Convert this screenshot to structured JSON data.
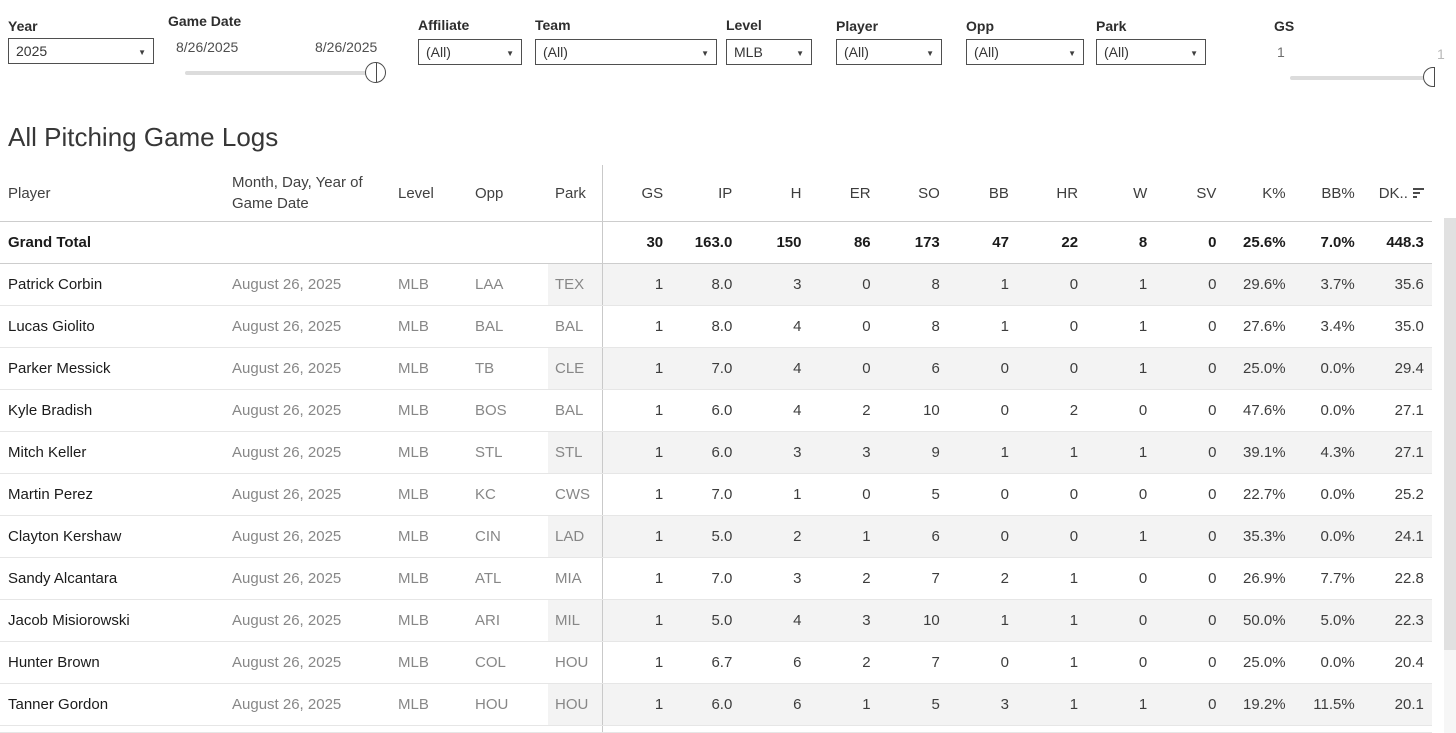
{
  "filters": {
    "year": {
      "label": "Year",
      "value": "2025"
    },
    "game_date": {
      "label": "Game Date",
      "start": "8/26/2025",
      "end": "8/26/2025"
    },
    "affiliate": {
      "label": "Affiliate",
      "value": "(All)"
    },
    "team": {
      "label": "Team",
      "value": "(All)"
    },
    "level": {
      "label": "Level",
      "value": "MLB"
    },
    "player": {
      "label": "Player",
      "value": "(All)"
    },
    "opp": {
      "label": "Opp",
      "value": "(All)"
    },
    "park": {
      "label": "Park",
      "value": "(All)"
    },
    "gs": {
      "label": "GS",
      "min": "1",
      "max": "1"
    }
  },
  "title": "All Pitching Game Logs",
  "table": {
    "header": {
      "player": "Player",
      "date": "Month, Day, Year of Game Date",
      "level": "Level",
      "opp": "Opp",
      "park": "Park",
      "stats": [
        "GS",
        "IP",
        "H",
        "ER",
        "SO",
        "BB",
        "HR",
        "W",
        "SV",
        "K%",
        "BB%",
        "DK.."
      ]
    },
    "grand_total": {
      "label": "Grand Total",
      "values": [
        "30",
        "163.0",
        "150",
        "86",
        "173",
        "47",
        "22",
        "8",
        "0",
        "25.6%",
        "7.0%",
        "448.3"
      ]
    },
    "rows": [
      {
        "player": "Patrick Corbin",
        "date": "August 26, 2025",
        "level": "MLB",
        "opp": "LAA",
        "park": "TEX",
        "values": [
          "1",
          "8.0",
          "3",
          "0",
          "8",
          "1",
          "0",
          "1",
          "0",
          "29.6%",
          "3.7%",
          "35.6"
        ]
      },
      {
        "player": "Lucas Giolito",
        "date": "August 26, 2025",
        "level": "MLB",
        "opp": "BAL",
        "park": "BAL",
        "values": [
          "1",
          "8.0",
          "4",
          "0",
          "8",
          "1",
          "0",
          "1",
          "0",
          "27.6%",
          "3.4%",
          "35.0"
        ]
      },
      {
        "player": "Parker Messick",
        "date": "August 26, 2025",
        "level": "MLB",
        "opp": "TB",
        "park": "CLE",
        "values": [
          "1",
          "7.0",
          "4",
          "0",
          "6",
          "0",
          "0",
          "1",
          "0",
          "25.0%",
          "0.0%",
          "29.4"
        ]
      },
      {
        "player": "Kyle Bradish",
        "date": "August 26, 2025",
        "level": "MLB",
        "opp": "BOS",
        "park": "BAL",
        "values": [
          "1",
          "6.0",
          "4",
          "2",
          "10",
          "0",
          "2",
          "0",
          "0",
          "47.6%",
          "0.0%",
          "27.1"
        ]
      },
      {
        "player": "Mitch Keller",
        "date": "August 26, 2025",
        "level": "MLB",
        "opp": "STL",
        "park": "STL",
        "values": [
          "1",
          "6.0",
          "3",
          "3",
          "9",
          "1",
          "1",
          "1",
          "0",
          "39.1%",
          "4.3%",
          "27.1"
        ]
      },
      {
        "player": "Martin Perez",
        "date": "August 26, 2025",
        "level": "MLB",
        "opp": "KC",
        "park": "CWS",
        "values": [
          "1",
          "7.0",
          "1",
          "0",
          "5",
          "0",
          "0",
          "0",
          "0",
          "22.7%",
          "0.0%",
          "25.2"
        ]
      },
      {
        "player": "Clayton Kershaw",
        "date": "August 26, 2025",
        "level": "MLB",
        "opp": "CIN",
        "park": "LAD",
        "values": [
          "1",
          "5.0",
          "2",
          "1",
          "6",
          "0",
          "0",
          "1",
          "0",
          "35.3%",
          "0.0%",
          "24.1"
        ]
      },
      {
        "player": "Sandy Alcantara",
        "date": "August 26, 2025",
        "level": "MLB",
        "opp": "ATL",
        "park": "MIA",
        "values": [
          "1",
          "7.0",
          "3",
          "2",
          "7",
          "2",
          "1",
          "0",
          "0",
          "26.9%",
          "7.7%",
          "22.8"
        ]
      },
      {
        "player": "Jacob Misiorowski",
        "date": "August 26, 2025",
        "level": "MLB",
        "opp": "ARI",
        "park": "MIL",
        "values": [
          "1",
          "5.0",
          "4",
          "3",
          "10",
          "1",
          "1",
          "0",
          "0",
          "50.0%",
          "5.0%",
          "22.3"
        ]
      },
      {
        "player": "Hunter Brown",
        "date": "August 26, 2025",
        "level": "MLB",
        "opp": "COL",
        "park": "HOU",
        "values": [
          "1",
          "6.7",
          "6",
          "2",
          "7",
          "0",
          "1",
          "0",
          "0",
          "25.0%",
          "0.0%",
          "20.4"
        ]
      },
      {
        "player": "Tanner Gordon",
        "date": "August 26, 2025",
        "level": "MLB",
        "opp": "HOU",
        "park": "HOU",
        "values": [
          "1",
          "6.0",
          "6",
          "1",
          "5",
          "3",
          "1",
          "1",
          "0",
          "19.2%",
          "11.5%",
          "20.1"
        ]
      }
    ]
  },
  "icons": {
    "dropdown_caret": "▼",
    "sort": "sort-descending"
  },
  "colors": {
    "row_band": "#f3f3f3",
    "divider": "#c9c9c9",
    "row_line": "#e6e6e6",
    "muted_text": "#878787",
    "scrollbar_thumb": "#e1e1e1"
  }
}
